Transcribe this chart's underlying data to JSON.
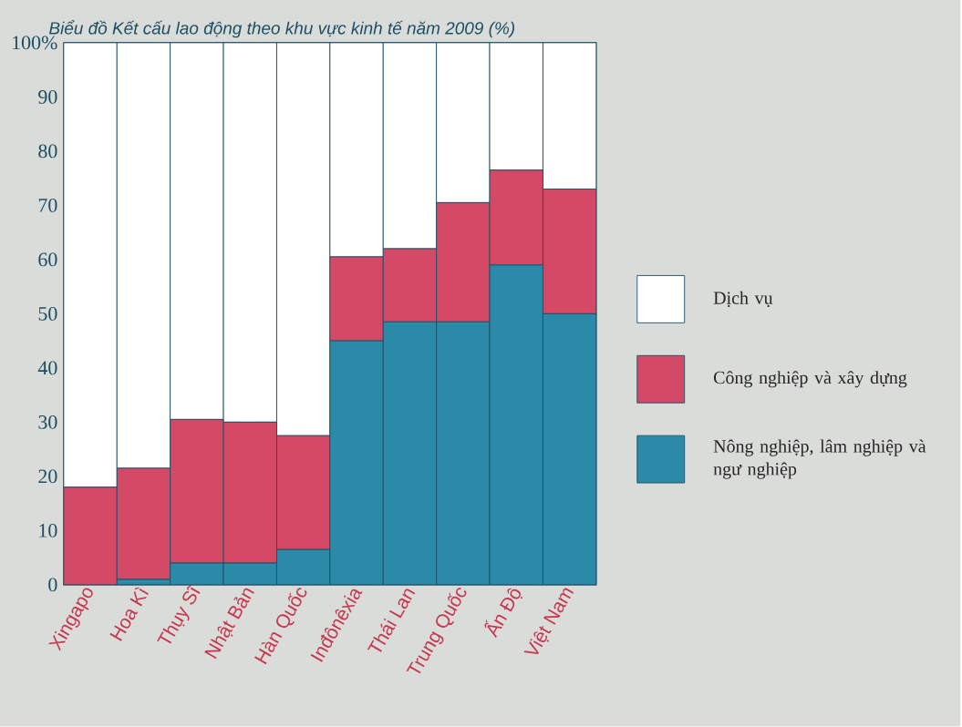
{
  "chart_data": {
    "type": "bar",
    "stacked": true,
    "title": "Biểu đồ Kết cấu lao động theo khu vực kinh tế năm 2009 (%)",
    "categories": [
      "Xingapo",
      "Hoa Kì",
      "Thụy Sĩ",
      "Nhật Bản",
      "Hàn Quốc",
      "Inđônêxia",
      "Thái Lan",
      "Trung Quốc",
      "Ấn Độ",
      "Việt Nam"
    ],
    "series": [
      {
        "name": "Nông nghiệp, lâm nghiệp và ngư nghiệp",
        "color": "#2a8aa8",
        "values": [
          0,
          1,
          4,
          4,
          6.5,
          45,
          48.5,
          48.5,
          59,
          50
        ]
      },
      {
        "name": "Công nghiệp và xây dựng",
        "color": "#d44a66",
        "values": [
          18,
          20.5,
          26.5,
          26,
          21,
          15.5,
          13.5,
          22,
          17.5,
          23
        ]
      },
      {
        "name": "Dịch vụ",
        "color": "#ffffff",
        "values": [
          82,
          78.5,
          69.5,
          70,
          72.5,
          39.5,
          38,
          29.5,
          23.5,
          27
        ]
      }
    ],
    "ylim": [
      0,
      100
    ],
    "yticks": [
      0,
      10,
      20,
      30,
      40,
      50,
      60,
      70,
      80,
      90,
      {
        "value": 100,
        "label": "100%"
      }
    ],
    "grid": "y",
    "legend": "right"
  }
}
